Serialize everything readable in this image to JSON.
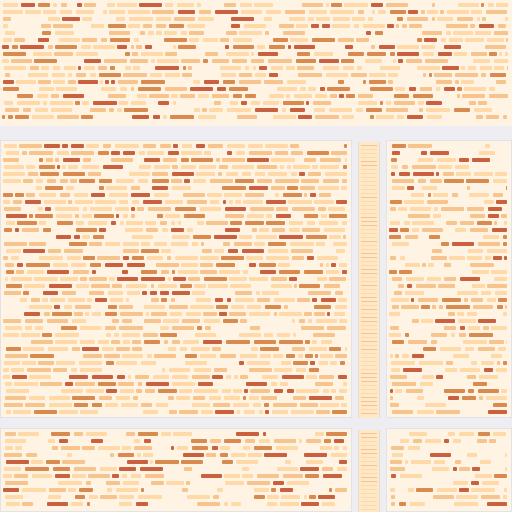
{
  "window": {
    "title": "",
    "background": "#eeeef2"
  },
  "colors": {
    "panel_bg": "#fff4e3",
    "text_light": "#ffd9a8",
    "text_mid": "#f6c48c",
    "text_strong": "#d98a4f",
    "text_accent": "#c9603f",
    "gutter_bg": "#ffe8c8"
  },
  "panels": [
    {
      "id": "top-log-pane",
      "label": ""
    },
    {
      "id": "main-editor-pane",
      "label": ""
    },
    {
      "id": "right-editor-pane",
      "label": ""
    },
    {
      "id": "bottom-left-pane",
      "label": ""
    },
    {
      "id": "bottom-right-pane",
      "label": ""
    }
  ],
  "icons": [
    "scrollbar-track",
    "scrollbar-track"
  ]
}
